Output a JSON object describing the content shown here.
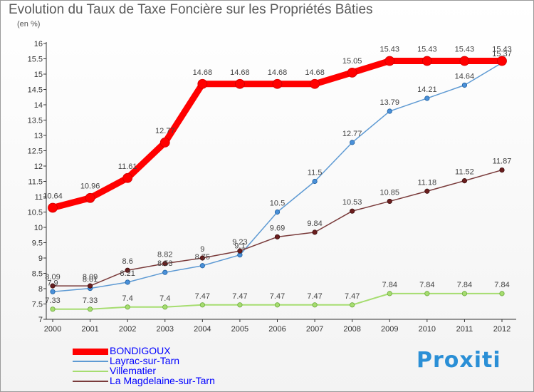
{
  "title": "Evolution du Taux de Taxe Foncière sur les Propriétés Bâties",
  "unit_label": "(en %)",
  "brand": "Proxiti",
  "chart_data": {
    "type": "line",
    "title": "Evolution du Taux de Taxe Foncière sur les Propriétés Bâties",
    "ylabel": "(en %)",
    "xlabel": "",
    "x": [
      "2000",
      "2001",
      "2002",
      "2003",
      "2004",
      "2005",
      "2006",
      "2007",
      "2008",
      "2009",
      "2010",
      "2011",
      "2012"
    ],
    "ylim": [
      7,
      16
    ],
    "yticks": [
      "7",
      "7.5",
      "8",
      "8.5",
      "9",
      "9.5",
      "10",
      "10.5",
      "11",
      "11.5",
      "12",
      "12.5",
      "13",
      "13.5",
      "14",
      "14.5",
      "15",
      "15.5",
      "16"
    ],
    "grid": false,
    "legend_position": "bottom-left",
    "series": [
      {
        "name": "BONDIGOUX",
        "color": "#ff0000",
        "values": [
          10.64,
          10.96,
          11.61,
          12.77,
          14.68,
          14.68,
          14.68,
          14.68,
          15.05,
          15.43,
          15.43,
          15.43,
          15.43
        ],
        "labels": [
          "10.64",
          "10.96",
          "11.61",
          "12.77",
          "14.68",
          "14.68",
          "14.68",
          "14.68",
          "15.05",
          "15.43",
          "15.43",
          "15.43",
          "15.43"
        ]
      },
      {
        "name": "Layrac-sur-Tarn",
        "color": "#5e9ad3",
        "values": [
          7.9,
          8.01,
          8.21,
          8.53,
          8.75,
          9.1,
          10.5,
          11.5,
          12.77,
          13.79,
          14.21,
          14.64,
          15.37
        ],
        "labels": [
          "7.9",
          "8.01",
          "8.21",
          "8.53",
          "8.75",
          "9.1",
          "10.5",
          "11.5",
          "12.77",
          "13.79",
          "14.21",
          "14.64",
          "15.37"
        ]
      },
      {
        "name": "Villematier",
        "color": "#a6dd70",
        "values": [
          7.33,
          7.33,
          7.4,
          7.4,
          7.47,
          7.47,
          7.47,
          7.47,
          7.47,
          7.84,
          7.84,
          7.84,
          7.84
        ],
        "labels": [
          "7.33",
          "7.33",
          "7.4",
          "7.4",
          "7.47",
          "7.47",
          "7.47",
          "7.47",
          "7.47",
          "7.84",
          "7.84",
          "7.84",
          "7.84"
        ]
      },
      {
        "name": "La Magdelaine-sur-Tarn",
        "color": "#7a3b3b",
        "values": [
          8.09,
          8.09,
          8.6,
          8.82,
          9.0,
          9.23,
          9.69,
          9.84,
          10.53,
          10.85,
          11.18,
          11.52,
          11.87
        ],
        "labels": [
          "8.09",
          "8.09",
          "8.6",
          "8.82",
          "9",
          "9.23",
          "9.69",
          "9.84",
          "10.53",
          "10.85",
          "11.18",
          "11.52",
          "11.87"
        ]
      }
    ]
  }
}
